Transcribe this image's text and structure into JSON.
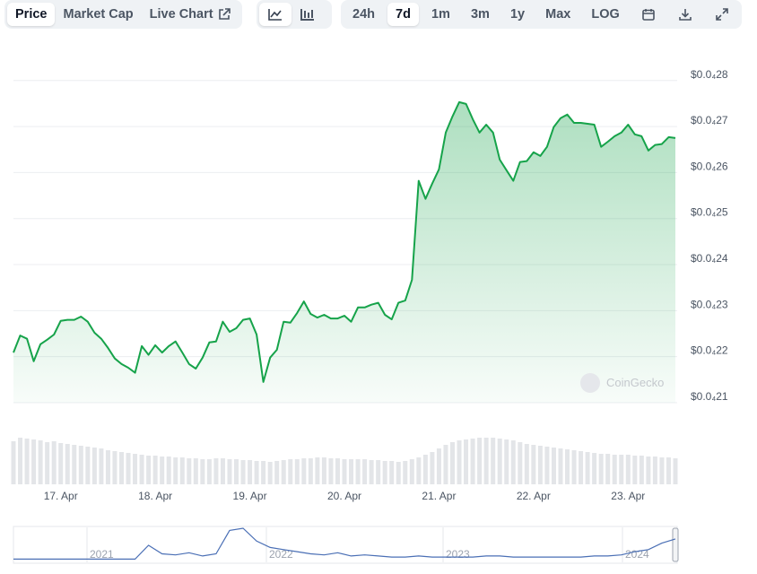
{
  "toolbar": {
    "view_tabs": [
      "Price",
      "Market Cap",
      "Live Chart"
    ],
    "ranges": [
      "24h",
      "7d",
      "1m",
      "3m",
      "1y",
      "Max",
      "LOG"
    ]
  },
  "watermark": "CoinGecko",
  "chart_data": [
    {
      "type": "line",
      "color": "#16a34a",
      "grid": true,
      "categories": [
        null,
        null,
        null,
        null,
        null,
        null,
        null,
        "17. Apr",
        null,
        null,
        null,
        null,
        null,
        null,
        null,
        null,
        null,
        null,
        null,
        null,
        null,
        "18. Apr",
        null,
        null,
        null,
        null,
        null,
        null,
        null,
        null,
        null,
        null,
        null,
        null,
        null,
        "19. Apr",
        null,
        null,
        null,
        null,
        null,
        null,
        null,
        null,
        null,
        null,
        null,
        null,
        null,
        "20. Apr",
        null,
        null,
        null,
        null,
        null,
        null,
        null,
        null,
        null,
        null,
        null,
        null,
        null,
        "21. Apr",
        null,
        null,
        null,
        null,
        null,
        null,
        null,
        null,
        null,
        null,
        null,
        null,
        null,
        "22. Apr",
        null,
        null,
        null,
        null,
        null,
        null,
        null,
        null,
        null,
        null,
        null,
        null,
        null,
        "23. Apr",
        null,
        null,
        null,
        null,
        null,
        null,
        null
      ],
      "values": [
        2.209e-05,
        2.246e-05,
        2.239e-05,
        2.19e-05,
        2.227e-05,
        2.237e-05,
        2.248e-05,
        2.278e-05,
        2.28e-05,
        2.28e-05,
        2.287e-05,
        2.276e-05,
        2.252e-05,
        2.239e-05,
        2.219e-05,
        2.196e-05,
        2.184e-05,
        2.176e-05,
        2.165e-05,
        2.223e-05,
        2.204e-05,
        2.225e-05,
        2.209e-05,
        2.223e-05,
        2.233e-05,
        2.209e-05,
        2.184e-05,
        2.174e-05,
        2.198e-05,
        2.231e-05,
        2.233e-05,
        2.276e-05,
        2.254e-05,
        2.262e-05,
        2.28e-05,
        2.283e-05,
        2.248e-05,
        2.145e-05,
        2.198e-05,
        2.215e-05,
        2.276e-05,
        2.274e-05,
        2.295e-05,
        2.32e-05,
        2.293e-05,
        2.285e-05,
        2.291e-05,
        2.283e-05,
        2.283e-05,
        2.289e-05,
        2.276e-05,
        2.307e-05,
        2.307e-05,
        2.313e-05,
        2.317e-05,
        2.291e-05,
        2.281e-05,
        2.317e-05,
        2.322e-05,
        2.367e-05,
        2.582e-05,
        2.543e-05,
        2.576e-05,
        2.607e-05,
        2.687e-05,
        2.722e-05,
        2.753e-05,
        2.749e-05,
        2.716e-05,
        2.687e-05,
        2.704e-05,
        2.687e-05,
        2.628e-05,
        2.605e-05,
        2.582e-05,
        2.623e-05,
        2.625e-05,
        2.644e-05,
        2.636e-05,
        2.656e-05,
        2.699e-05,
        2.718e-05,
        2.726e-05,
        2.708e-05,
        2.708e-05,
        2.706e-05,
        2.704e-05,
        2.656e-05,
        2.667e-05,
        2.679e-05,
        2.687e-05,
        2.704e-05,
        2.683e-05,
        2.679e-05,
        2.648e-05,
        2.66e-05,
        2.662e-05,
        2.677e-05,
        2.675e-05
      ],
      "ylim": [
        2.1e-05,
        2.858e-05
      ],
      "yticks": [
        {
          "value": 2.1e-05,
          "label": "$0.0₄21"
        },
        {
          "value": 2.2e-05,
          "label": "$0.0₄22"
        },
        {
          "value": 2.3e-05,
          "label": "$0.0₄23"
        },
        {
          "value": 2.4e-05,
          "label": "$0.0₄24"
        },
        {
          "value": 2.5e-05,
          "label": "$0.0₄25"
        },
        {
          "value": 2.6e-05,
          "label": "$0.0₄26"
        },
        {
          "value": 2.7e-05,
          "label": "$0.0₄27"
        },
        {
          "value": 2.8e-05,
          "label": "$0.0₄28"
        }
      ]
    },
    {
      "type": "bar",
      "color": "#e3e5e8",
      "values": [
        48,
        52,
        51,
        50,
        49,
        47,
        48,
        46,
        45,
        44,
        43,
        42,
        41,
        40,
        38,
        37,
        36,
        35,
        34,
        33,
        32,
        32,
        31,
        31,
        30,
        30,
        29,
        29,
        28,
        28,
        29,
        29,
        28,
        28,
        27,
        27,
        26,
        26,
        25,
        26,
        27,
        28,
        28,
        29,
        29,
        30,
        30,
        29,
        29,
        28,
        28,
        28,
        28,
        27,
        27,
        26,
        26,
        25,
        26,
        28,
        30,
        33,
        36,
        40,
        44,
        47,
        49,
        50,
        51,
        52,
        52,
        52,
        51,
        50,
        49,
        47,
        45,
        44,
        43,
        42,
        41,
        40,
        39,
        38,
        37,
        36,
        35,
        34,
        34,
        33,
        33,
        33,
        32,
        32,
        31,
        31,
        30,
        30,
        29
      ]
    },
    {
      "type": "line",
      "color": "#4a6fb5",
      "year_labels": [
        "2021",
        "2022",
        "2023",
        "2024"
      ],
      "values": [
        3,
        3,
        3,
        3,
        3,
        3,
        3,
        3,
        3,
        3,
        16,
        8,
        7,
        9,
        6,
        8,
        30,
        32,
        20,
        14,
        12,
        10,
        8,
        7,
        9,
        6,
        7,
        6,
        5,
        5,
        6,
        5,
        5,
        5,
        5,
        6,
        6,
        5,
        5,
        5,
        5,
        5,
        5,
        6,
        6,
        7,
        10,
        12,
        18,
        22
      ]
    }
  ]
}
